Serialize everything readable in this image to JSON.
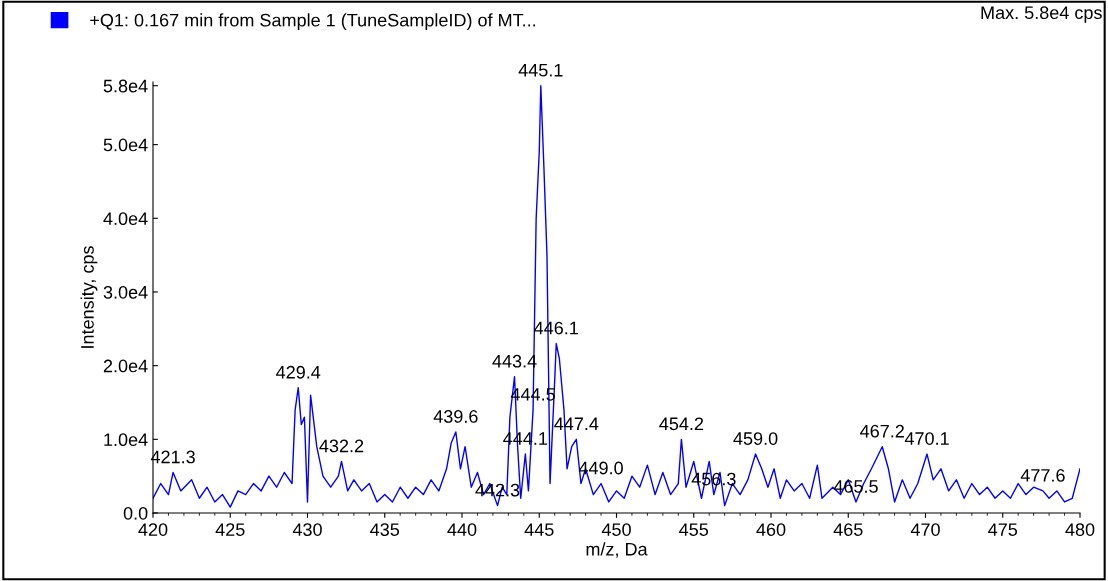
{
  "chart_data": {
    "type": "line",
    "xlabel": "m/z, Da",
    "ylabel": "Intensity, cps",
    "annotations": [
      "Max. 5.8e4 cps",
      {
        "text": "421.3",
        "x": 421.3,
        "y": 5500
      },
      {
        "text": "429.4",
        "x": 429.4,
        "y": 17000
      },
      {
        "text": "432.2",
        "x": 432.2,
        "y": 7000
      },
      {
        "text": "439.6",
        "x": 439.6,
        "y": 11000
      },
      {
        "text": "442.3",
        "x": 442.3,
        "y": 1000
      },
      {
        "text": "443.4",
        "x": 443.4,
        "y": 18500
      },
      {
        "text": "444.5",
        "x": 444.6,
        "y": 14000
      },
      {
        "text": "444.1",
        "x": 444.1,
        "y": 8000
      },
      {
        "text": "445.1",
        "x": 445.1,
        "y": 58000
      },
      {
        "text": "446.1",
        "x": 446.1,
        "y": 23000
      },
      {
        "text": "447.4",
        "x": 447.4,
        "y": 10000
      },
      {
        "text": "449.0",
        "x": 449.0,
        "y": 4000
      },
      {
        "text": "454.2",
        "x": 454.2,
        "y": 10000
      },
      {
        "text": "456.3",
        "x": 456.3,
        "y": 2500
      },
      {
        "text": "459.0",
        "x": 459.0,
        "y": 8000
      },
      {
        "text": "465.5",
        "x": 465.5,
        "y": 1500
      },
      {
        "text": "467.2",
        "x": 467.2,
        "y": 9000
      },
      {
        "text": "470.1",
        "x": 470.1,
        "y": 8000
      },
      {
        "text": "477.6",
        "x": 477.6,
        "y": 3000
      }
    ],
    "x": [
      420,
      420.5,
      421,
      421.3,
      421.8,
      422.5,
      423,
      423.5,
      424,
      424.5,
      425,
      425.5,
      426,
      426.5,
      427,
      427.5,
      428,
      428.5,
      429,
      429.2,
      429.4,
      429.6,
      429.8,
      430.0,
      430.2,
      430.6,
      431,
      431.5,
      432,
      432.2,
      432.6,
      433,
      433.5,
      434,
      434.5,
      435,
      435.5,
      436,
      436.5,
      437,
      437.5,
      438,
      438.5,
      439,
      439.3,
      439.6,
      439.9,
      440.2,
      440.6,
      441,
      441.4,
      441.8,
      442.3,
      442.6,
      442.9,
      443.1,
      443.4,
      443.6,
      443.8,
      444.1,
      444.3,
      444.6,
      444.8,
      445.0,
      445.1,
      445.3,
      445.5,
      445.7,
      446.0,
      446.1,
      446.3,
      446.6,
      446.8,
      447.1,
      447.4,
      447.7,
      448,
      448.5,
      449,
      449.5,
      450,
      450.5,
      451,
      451.5,
      452,
      452.5,
      453,
      453.5,
      454,
      454.2,
      454.5,
      455,
      455.5,
      456,
      456.3,
      456.7,
      457,
      457.5,
      458,
      458.5,
      459,
      459.4,
      459.8,
      460.2,
      460.6,
      461,
      461.5,
      462,
      462.5,
      463,
      463.3,
      464,
      464.5,
      465,
      465.5,
      466,
      466.5,
      467.2,
      467.6,
      468,
      468.5,
      469,
      469.5,
      470.1,
      470.5,
      471,
      471.5,
      472,
      472.5,
      473,
      473.5,
      474,
      474.5,
      475,
      475.5,
      476,
      476.5,
      477,
      477.6,
      478,
      478.5,
      479,
      479.5,
      480
    ],
    "series": [
      {
        "name": "+Q1: 0.167 min from Sample 1 (TuneSampleID) of MT...",
        "color": "#0000ff",
        "values": [
          2000,
          4000,
          2500,
          5500,
          3000,
          4500,
          2000,
          3500,
          1500,
          2500,
          800,
          3000,
          2500,
          4000,
          3000,
          5000,
          3500,
          5500,
          4000,
          14000,
          17000,
          12000,
          13000,
          1500,
          16000,
          9000,
          5000,
          3500,
          5000,
          7000,
          3000,
          4500,
          3000,
          4000,
          1500,
          2500,
          1500,
          3500,
          2000,
          3500,
          2500,
          4500,
          3000,
          6000,
          9500,
          11000,
          6000,
          9000,
          3500,
          5500,
          2500,
          4000,
          1000,
          3500,
          2500,
          13000,
          18500,
          9000,
          2000,
          8000,
          3000,
          14000,
          40000,
          49000,
          58000,
          47000,
          35000,
          4000,
          18000,
          23000,
          21000,
          14000,
          6000,
          9000,
          10000,
          4000,
          6000,
          2500,
          4000,
          1500,
          3000,
          2000,
          5000,
          3500,
          6500,
          2500,
          5500,
          2500,
          4000,
          10000,
          3500,
          7000,
          2000,
          7000,
          2500,
          5500,
          1000,
          4000,
          2500,
          4500,
          8000,
          6000,
          3500,
          6000,
          2000,
          4500,
          3000,
          4000,
          2000,
          6500,
          2000,
          3500,
          2500,
          4500,
          1500,
          4000,
          6000,
          9000,
          6000,
          1500,
          4500,
          2000,
          4000,
          8000,
          4500,
          6000,
          3000,
          4500,
          2000,
          4000,
          2500,
          3500,
          2000,
          3000,
          2000,
          4000,
          2500,
          3500,
          3000,
          2000,
          3000,
          1500,
          2000,
          6000
        ]
      }
    ],
    "xlim": [
      420,
      480
    ],
    "xticks": [
      420,
      425,
      430,
      435,
      440,
      445,
      450,
      455,
      460,
      465,
      470,
      475,
      480
    ],
    "ylim": [
      0,
      58500
    ],
    "yticks": [
      {
        "value": 0,
        "label": "0.0"
      },
      {
        "value": 10000,
        "label": "1.0e4"
      },
      {
        "value": 20000,
        "label": "2.0e4"
      },
      {
        "value": 30000,
        "label": "3.0e4"
      },
      {
        "value": 40000,
        "label": "4.0e4"
      },
      {
        "value": 50000,
        "label": "5.0e4"
      },
      {
        "value": 58000,
        "label": "5.8e4"
      }
    ],
    "grid": false,
    "legend": "top left",
    "line_style": "solid",
    "marker": "none"
  }
}
